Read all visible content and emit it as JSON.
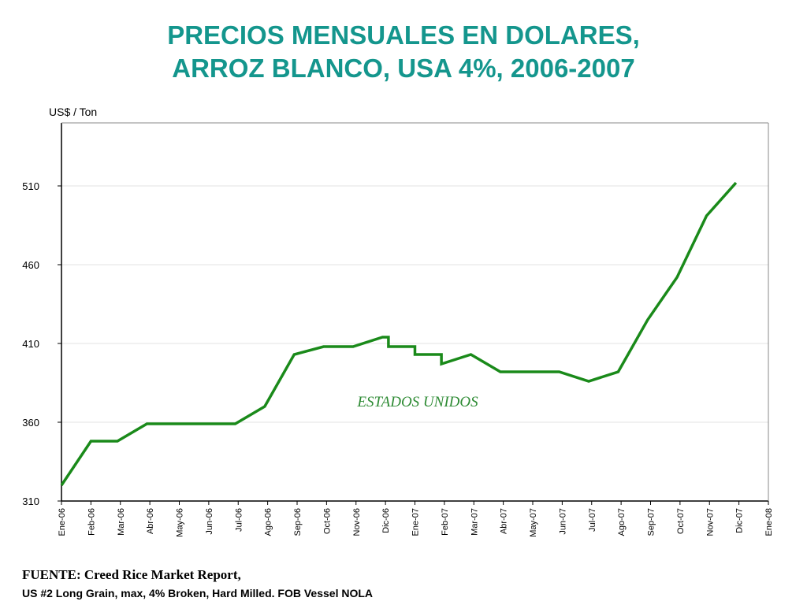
{
  "title_line1": "PRECIOS MENSUALES EN DOLARES,",
  "title_line2": "ARROZ BLANCO, USA 4%, 2006-2007",
  "source_line1": "FUENTE: Creed Rice Market Report,",
  "source_line2": "US #2 Long Grain, max, 4% Broken, Hard Milled. FOB Vessel NOLA",
  "colors": {
    "title": "#14968d",
    "line": "#1a8a1a",
    "annotation": "#2e8b34"
  },
  "chart_data": {
    "type": "line",
    "title": "PRECIOS MENSUALES EN DOLARES, ARROZ BLANCO, USA 4%, 2006-2007",
    "ylabel": "US$ / Ton",
    "xlabel": "",
    "ylim": [
      310,
      550
    ],
    "yticks": [
      310,
      360,
      410,
      460,
      510
    ],
    "grid": true,
    "categories": [
      "Ene-06",
      "Feb-06",
      "Mar-06",
      "Abr-06",
      "May-06",
      "Jun-06",
      "Jul-06",
      "Ago-06",
      "Sep-06",
      "Oct-06",
      "Nov-06",
      "Dic-06",
      "Ene-07",
      "Feb-07",
      "Mar-07",
      "Abr-07",
      "May-07",
      "Jun-07",
      "Jul-07",
      "Ago-07",
      "Sep-07",
      "Oct-07",
      "Nov-07",
      "Dic-07",
      "Ene-08"
    ],
    "annotation": "ESTADOS UNIDOS",
    "series": [
      {
        "x": [
          0,
          1,
          1.9,
          2.9,
          3.9,
          4.9,
          5.9,
          6.9,
          7.9,
          8.9,
          9.9,
          10.9,
          11.1,
          11.1,
          12.0,
          12.0,
          12.9,
          12.9,
          13.9,
          14.9,
          15.9,
          16.9,
          17.9,
          18.9,
          19.9,
          20.9,
          21.9,
          22.9
        ],
        "y": [
          320,
          348,
          348,
          359,
          359,
          359,
          359,
          370,
          403,
          408,
          408,
          414,
          414,
          408,
          408,
          403,
          403,
          397,
          403,
          392,
          392,
          392,
          386,
          392,
          425,
          452,
          491,
          512
        ]
      }
    ]
  }
}
